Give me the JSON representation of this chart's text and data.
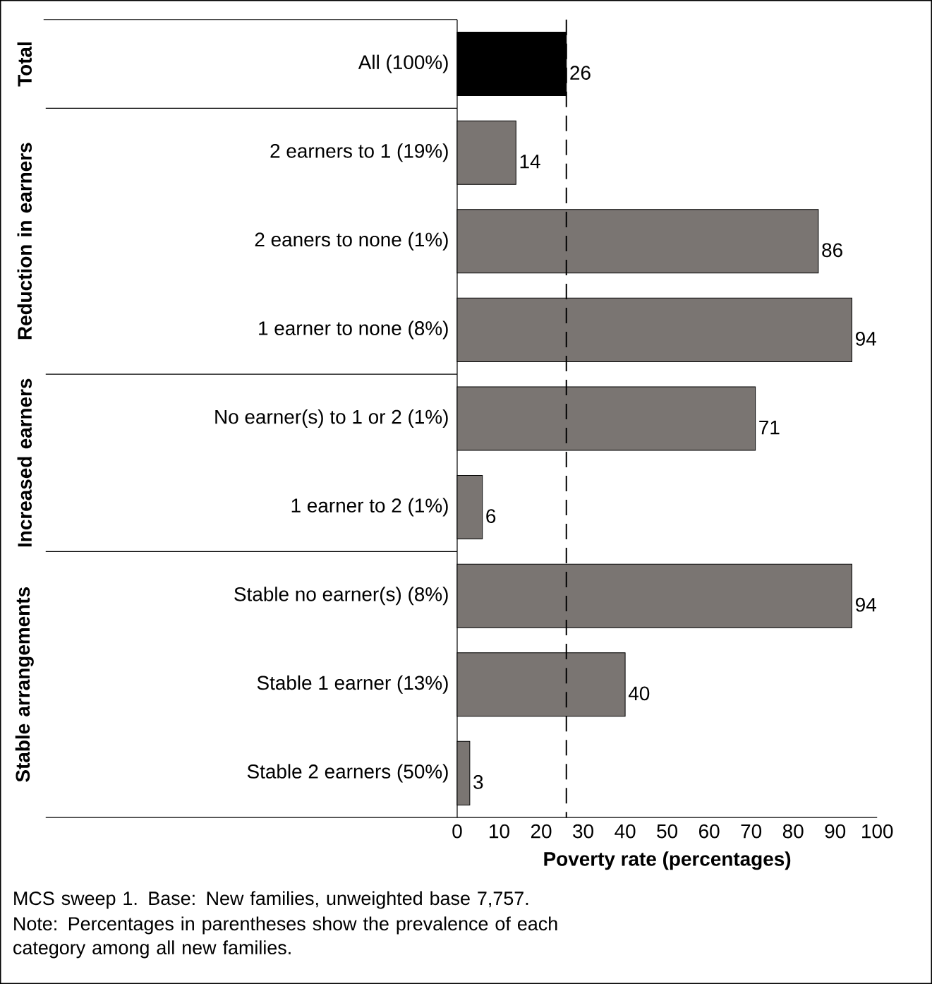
{
  "chart_data": {
    "type": "bar",
    "orientation": "horizontal",
    "categories": [
      "All (100%)",
      "2 earners to 1 (19%)",
      "2 eaners to none (1%)",
      "1 earner to none (8%)",
      "No earner(s) to 1 or 2 (1%)",
      "1 earner to 2 (1%)",
      "Stable no earner(s) (8%)",
      "Stable 1 earner (13%)",
      "Stable 2 earners (50%)"
    ],
    "values": [
      26,
      14,
      86,
      94,
      71,
      6,
      94,
      40,
      3
    ],
    "colors": [
      "#000000",
      "#7a7572",
      "#7a7572",
      "#7a7572",
      "#7a7572",
      "#7a7572",
      "#7a7572",
      "#7a7572",
      "#7a7572"
    ],
    "data_labels": true,
    "xlabel": "Poverty rate (percentages)",
    "xlim": [
      0,
      100
    ],
    "xticks": [
      0,
      10,
      20,
      30,
      40,
      50,
      60,
      70,
      80,
      90,
      100
    ],
    "grid": false,
    "ref_lines": [
      {
        "axis": "x",
        "value": 26,
        "color": "#000000",
        "line_style": "dashed"
      }
    ],
    "annotations": [
      "Total",
      "Reduction in earners",
      "Increased earners",
      "Stable arrangements",
      "MCS sweep 1. Base: New families, unweighted base 7,757.",
      "Note: Percentages in parentheses show the prevalence of each category among all new families."
    ]
  }
}
